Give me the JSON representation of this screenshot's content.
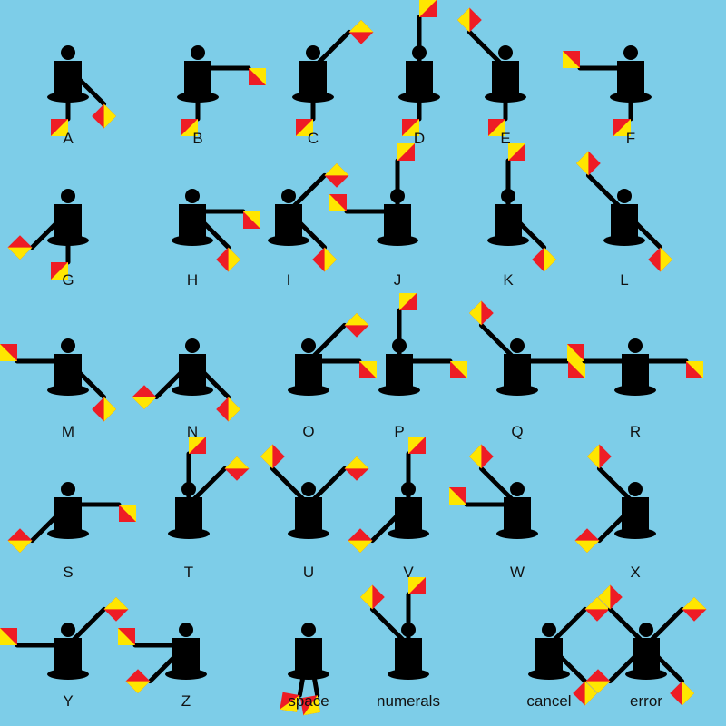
{
  "background_color": "#7dcde8",
  "flag_colors": {
    "red": "#ee1c25",
    "yellow": "#ffe600"
  },
  "figure_color": "#000000",
  "signals": [
    {
      "label": "A",
      "arms": [
        270,
        315
      ]
    },
    {
      "label": "B",
      "arms": [
        270,
        0
      ]
    },
    {
      "label": "C",
      "arms": [
        270,
        45
      ]
    },
    {
      "label": "D",
      "arms": [
        270,
        90
      ]
    },
    {
      "label": "E",
      "arms": [
        270,
        135
      ]
    },
    {
      "label": "F",
      "arms": [
        270,
        180
      ]
    },
    {
      "label": "G",
      "arms": [
        270,
        225
      ]
    },
    {
      "label": "H",
      "arms": [
        315,
        0
      ]
    },
    {
      "label": "I",
      "arms": [
        315,
        45
      ]
    },
    {
      "label": "J",
      "arms": [
        90,
        180
      ]
    },
    {
      "label": "K",
      "arms": [
        315,
        90
      ]
    },
    {
      "label": "L",
      "arms": [
        315,
        135
      ]
    },
    {
      "label": "M",
      "arms": [
        315,
        180
      ]
    },
    {
      "label": "N",
      "arms": [
        315,
        225
      ]
    },
    {
      "label": "O",
      "arms": [
        0,
        45
      ]
    },
    {
      "label": "P",
      "arms": [
        0,
        90
      ]
    },
    {
      "label": "Q",
      "arms": [
        0,
        135
      ]
    },
    {
      "label": "R",
      "arms": [
        0,
        180
      ]
    },
    {
      "label": "S",
      "arms": [
        0,
        225
      ]
    },
    {
      "label": "T",
      "arms": [
        45,
        90
      ]
    },
    {
      "label": "U",
      "arms": [
        45,
        135
      ]
    },
    {
      "label": "V",
      "arms": [
        90,
        225
      ]
    },
    {
      "label": "W",
      "arms": [
        135,
        180
      ]
    },
    {
      "label": "X",
      "arms": [
        135,
        225
      ]
    },
    {
      "label": "Y",
      "arms": [
        180,
        45
      ]
    },
    {
      "label": "Z",
      "arms": [
        180,
        225
      ]
    },
    {
      "label": "space",
      "arms": [
        260,
        280
      ]
    },
    {
      "label": "numerals",
      "arms": [
        90,
        135
      ]
    },
    {
      "label": "cancel",
      "arms": [
        315,
        45
      ]
    },
    {
      "label": "error",
      "arms": [
        315,
        45,
        135,
        225
      ]
    }
  ]
}
